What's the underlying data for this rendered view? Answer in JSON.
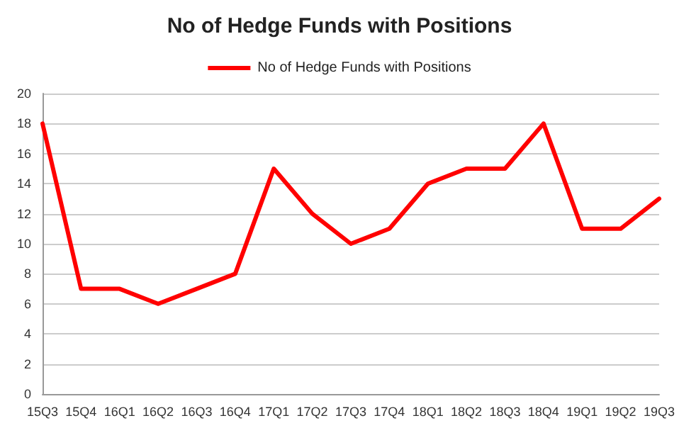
{
  "chart_data": {
    "type": "line",
    "title": "No of Hedge Funds with Positions",
    "categories": [
      "15Q3",
      "15Q4",
      "16Q1",
      "16Q2",
      "16Q3",
      "16Q4",
      "17Q1",
      "17Q2",
      "17Q3",
      "17Q4",
      "18Q1",
      "18Q2",
      "18Q3",
      "18Q4",
      "19Q1",
      "19Q2",
      "19Q3"
    ],
    "series": [
      {
        "name": "No of Hedge Funds with Positions",
        "color": "#ff0000",
        "values": [
          18,
          7,
          7,
          6,
          7,
          8,
          15,
          12,
          10,
          11,
          14,
          15,
          15,
          18,
          11,
          11,
          13
        ]
      }
    ],
    "ylim": [
      0,
      20
    ],
    "yticks": [
      0,
      2,
      4,
      6,
      8,
      10,
      12,
      14,
      16,
      18,
      20
    ],
    "grid": "y",
    "legend": "top",
    "marker": "none",
    "line_style": "solid"
  }
}
